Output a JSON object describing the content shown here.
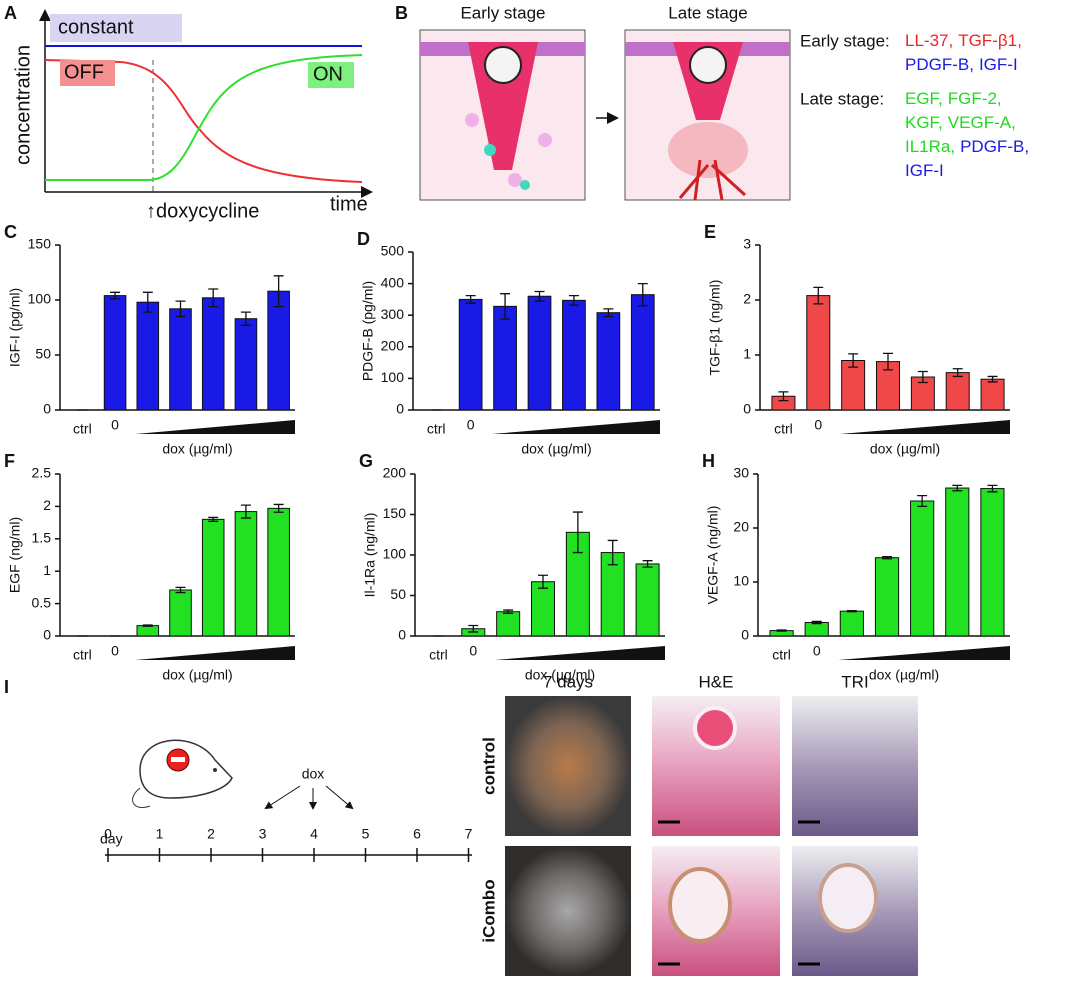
{
  "panel_a": {
    "label": "A",
    "y_label": "concentration",
    "x_label": "time",
    "constant": "constant",
    "off": "OFF",
    "on": "ON",
    "arrow_label": "↑doxycycline"
  },
  "panel_b": {
    "label": "B",
    "stages": [
      "Early stage",
      "Late stage"
    ],
    "legend": [
      {
        "title": "Early stage:",
        "lines": [
          [
            {
              "text": "LL-37,",
              "color": "#e8262a"
            },
            {
              "text": "TGF-β1,",
              "color": "#e8262a"
            }
          ],
          [
            {
              "text": "PDGF-B,",
              "color": "#1a1ae6"
            },
            {
              "text": "IGF-I",
              "color": "#1a1ae6"
            }
          ]
        ]
      },
      {
        "title": "Late stage:",
        "lines": [
          [
            {
              "text": "EGF,",
              "color": "#22d922"
            },
            {
              "text": "FGF-2,",
              "color": "#22d922"
            }
          ],
          [
            {
              "text": "KGF,",
              "color": "#22d922"
            },
            {
              "text": "VEGF-A,",
              "color": "#22d922"
            }
          ],
          [
            {
              "text": "IL1Ra,",
              "color": "#22d922"
            },
            {
              "text": "PDGF-B,",
              "color": "#1a1ae6"
            }
          ],
          [
            {
              "text": "IGF-I",
              "color": "#1a1ae6"
            }
          ]
        ]
      }
    ]
  },
  "chart_data": [
    {
      "type": "bar",
      "label": "C",
      "y_label": "IGF-I (pg/ml)",
      "x_label": "dox (µg/ml)",
      "color": "#1a1ae6",
      "categories": [
        "ctrl",
        "0",
        null,
        null,
        null,
        null,
        null
      ],
      "values": [
        0,
        104,
        98,
        92,
        102,
        83,
        108
      ],
      "errors": [
        0,
        3,
        9,
        7,
        8,
        6,
        14
      ],
      "ylim": [
        0,
        150
      ],
      "yticks": [
        0,
        50,
        100,
        150
      ]
    },
    {
      "type": "bar",
      "label": "D",
      "y_label": "PDGF-B (pg/ml)",
      "x_label": "dox (µg/ml)",
      "color": "#1a1ae6",
      "categories": [
        "ctrl",
        "0",
        null,
        null,
        null,
        null,
        null
      ],
      "values": [
        0,
        350,
        328,
        360,
        347,
        308,
        365
      ],
      "errors": [
        0,
        12,
        40,
        15,
        15,
        12,
        35
      ],
      "ylim": [
        0,
        500
      ],
      "yticks": [
        0,
        100,
        200,
        300,
        400,
        500
      ]
    },
    {
      "type": "bar",
      "label": "E",
      "y_label": "TGF-β1 (ng/ml)",
      "x_label": "dox (µg/ml)",
      "color": "#f04848",
      "categories": [
        "ctrl",
        "0",
        null,
        null,
        null,
        null,
        null
      ],
      "values": [
        0.25,
        2.08,
        0.9,
        0.88,
        0.6,
        0.68,
        0.56
      ],
      "errors": [
        0.08,
        0.15,
        0.12,
        0.15,
        0.1,
        0.07,
        0.05
      ],
      "ylim": [
        0,
        3
      ],
      "yticks": [
        0,
        1,
        2,
        3
      ]
    },
    {
      "type": "bar",
      "label": "F",
      "y_label": "EGF (ng/ml)",
      "x_label": "dox (µg/ml)",
      "color": "#22e022",
      "categories": [
        "ctrl",
        "0",
        null,
        null,
        null,
        null,
        null
      ],
      "values": [
        0,
        0,
        0.16,
        0.71,
        1.8,
        1.92,
        1.97
      ],
      "errors": [
        0,
        0,
        0.01,
        0.04,
        0.03,
        0.1,
        0.06
      ],
      "ylim": [
        0,
        2.5
      ],
      "yticks": [
        0,
        0.5,
        1,
        1.5,
        2,
        2.5
      ]
    },
    {
      "type": "bar",
      "label": "G",
      "y_label": "Il-1Ra (ng/ml)",
      "x_label": "dox (µg/ml)",
      "color": "#22e022",
      "categories": [
        "ctrl",
        "0",
        null,
        null,
        null,
        null,
        null
      ],
      "values": [
        0,
        9,
        30,
        67,
        128,
        103,
        89
      ],
      "errors": [
        0,
        4,
        2,
        8,
        25,
        15,
        4
      ],
      "ylim": [
        0,
        200
      ],
      "yticks": [
        0,
        50,
        100,
        150,
        200
      ]
    },
    {
      "type": "bar",
      "label": "H",
      "y_label": "VEGF-A (ng/ml)",
      "x_label": "dox (µg/ml)",
      "color": "#22e022",
      "categories": [
        "ctrl",
        "0",
        null,
        null,
        null,
        null,
        null
      ],
      "values": [
        1,
        2.5,
        4.6,
        14.5,
        25,
        27.4,
        27.3
      ],
      "errors": [
        0.1,
        0.2,
        0.1,
        0.2,
        1,
        0.5,
        0.6
      ],
      "ylim": [
        0,
        30
      ],
      "yticks": [
        0,
        10,
        20,
        30
      ]
    }
  ],
  "panel_i": {
    "label": "I",
    "day_label": "day",
    "days": [
      0,
      1,
      2,
      3,
      4,
      5,
      6,
      7
    ],
    "dox": "dox",
    "columns": [
      "7 days",
      "H&E",
      "TRI"
    ],
    "rows": [
      "control",
      "iCombo"
    ]
  }
}
